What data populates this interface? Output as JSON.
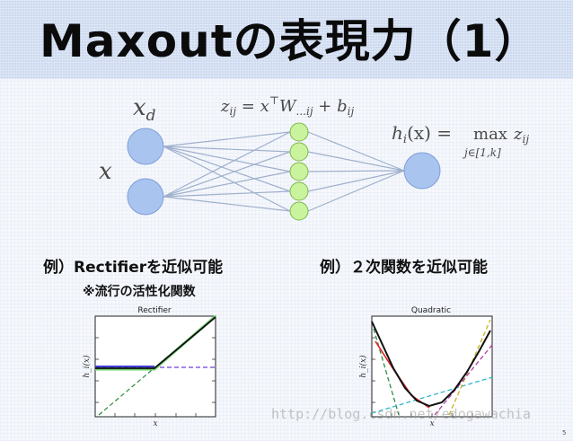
{
  "slide": {
    "title": "Maxoutの表現力（1）",
    "page_number": "5"
  },
  "diagram": {
    "input_label_top": "x",
    "input_label_top_sub": "d",
    "input_label_main": "x",
    "z_formula": {
      "lhs": "z",
      "lhs_sub": "ij",
      "eq": " = ",
      "x": "x",
      "sup": "⊤",
      "W": "W",
      "W_sub": "...ij",
      "plus": " + ",
      "b": "b",
      "b_sub": "ij"
    },
    "h_formula": {
      "h": "h",
      "h_sub": "i",
      "arg": "(x) =",
      "max": "max",
      "max_sub": "j∈[1,k]",
      "z": "z",
      "z_sub": "ij"
    },
    "colors": {
      "blue_node": "#a9c4ef",
      "blue_node_stroke": "#7f9fd6",
      "green_node": "#c9f39d",
      "green_node_stroke": "#7fb84f",
      "edge": "#9fb0cc"
    }
  },
  "examples": {
    "left_caption": "例）Rectifierを近似可能",
    "left_note": "※流行の活性化関数",
    "right_caption": "例）２次関数を近似可能"
  },
  "plots": {
    "left": {
      "title": "Rectifier",
      "ylabel": "h_i(x)",
      "xlabel": "x"
    },
    "right": {
      "title": "Quadratic",
      "ylabel": "h_i(x)",
      "xlabel": "x"
    }
  },
  "watermark": "http://blog.csdn.net/edogawachia"
}
